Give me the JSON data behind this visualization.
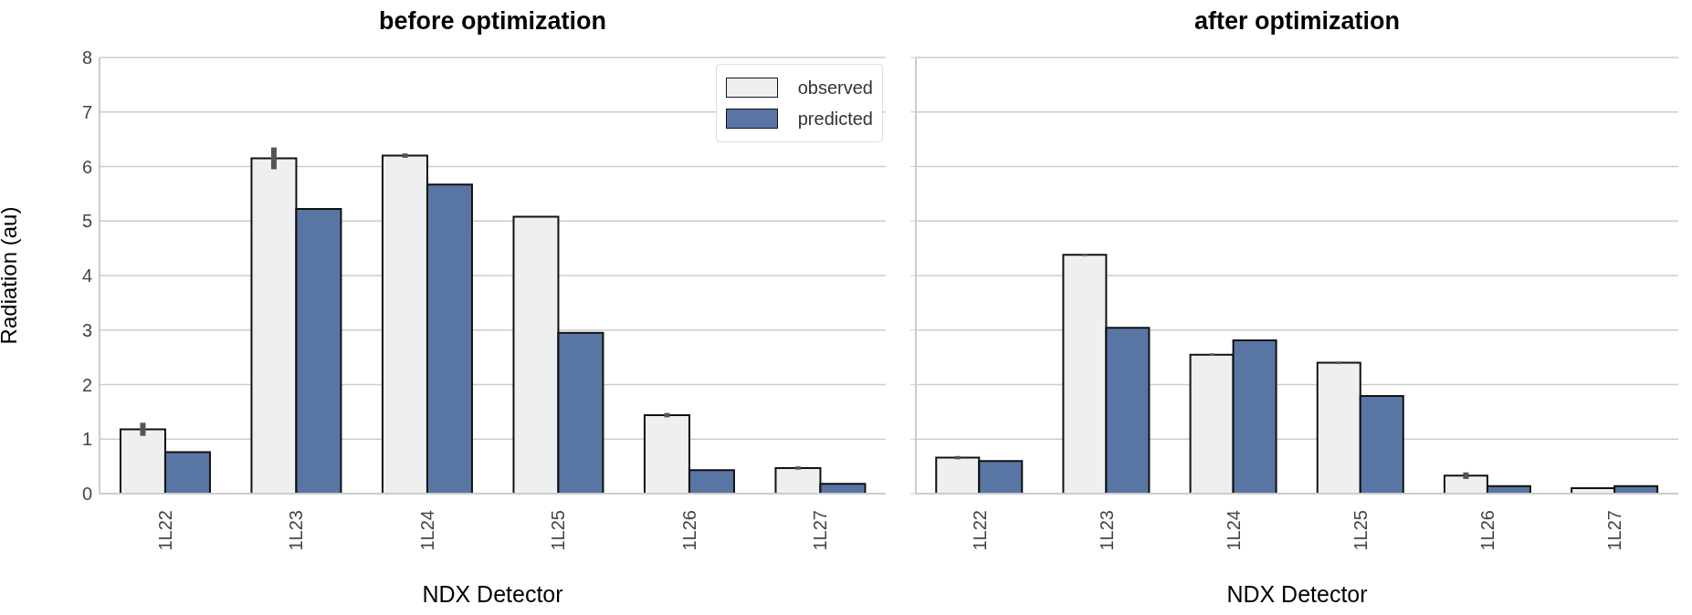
{
  "chart_data": [
    {
      "type": "bar",
      "title": "before optimization",
      "xlabel": "NDX Detector",
      "ylabel": "Radiation (au)",
      "categories": [
        "1L22",
        "1L23",
        "1L24",
        "1L25",
        "1L26",
        "1L27"
      ],
      "series": [
        {
          "name": "observed",
          "color": "#eeeff1",
          "values": [
            1.18,
            6.15,
            6.2,
            5.08,
            1.44,
            0.47
          ],
          "errors": [
            0.12,
            0.2,
            0.04,
            null,
            0.04,
            0.03
          ]
        },
        {
          "name": "predicted",
          "color": "#5975a4",
          "values": [
            0.76,
            5.22,
            5.67,
            2.95,
            0.43,
            0.18
          ]
        }
      ],
      "ylim": [
        0,
        8
      ],
      "yticks": [
        0,
        1,
        2,
        3,
        4,
        5,
        6,
        7,
        8
      ],
      "grid": "y",
      "legend": "top right"
    },
    {
      "type": "bar",
      "title": "after optimization",
      "xlabel": "NDX Detector",
      "categories": [
        "1L22",
        "1L23",
        "1L24",
        "1L25",
        "1L26",
        "1L27"
      ],
      "series": [
        {
          "color": "#eeeff1",
          "values": [
            0.66,
            4.38,
            2.55,
            2.4,
            0.33,
            0.1
          ],
          "errors": [
            0.03,
            0.02,
            0.02,
            0.02,
            0.06,
            null
          ]
        },
        {
          "color": "#5975a4",
          "values": [
            0.6,
            3.04,
            2.81,
            1.79,
            0.14,
            0.14
          ]
        }
      ],
      "ylim": [
        0,
        8
      ],
      "yticks": [
        0,
        1,
        2,
        3,
        4,
        5,
        6,
        7,
        8
      ],
      "grid": "y",
      "tick_labels": "x"
    }
  ]
}
